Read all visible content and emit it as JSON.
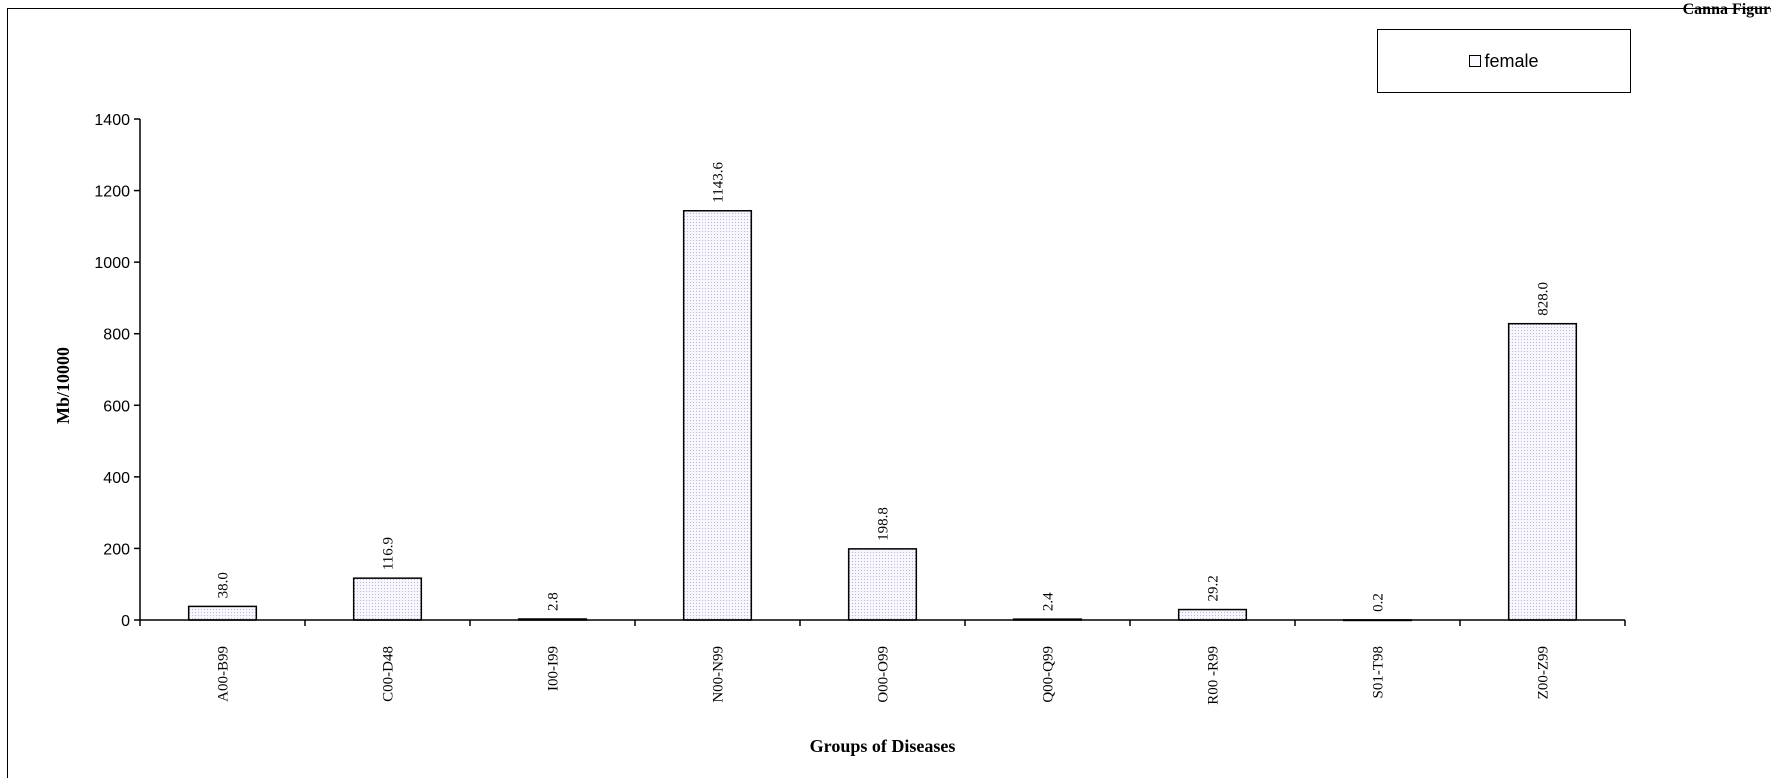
{
  "corner_label": "Сanna Figure",
  "chart_data": {
    "type": "bar",
    "categories": [
      "A00-B99",
      "C00-D48",
      "I00-I99",
      "N00-N99",
      "O00-O99",
      "Q00-Q99",
      "R00 -R99",
      "S01-T98",
      "Z00-Z99"
    ],
    "series": [
      {
        "name": "female",
        "values": [
          38.0,
          116.9,
          2.8,
          1143.6,
          198.8,
          2.4,
          29.2,
          0.2,
          828.0
        ]
      }
    ],
    "data_labels": [
      "38.0",
      "116.9",
      "2.8",
      "1143.6",
      "198.8",
      "2.4",
      "29.2",
      "0.2",
      "828.0"
    ],
    "yticks": [
      "0",
      "200",
      "400",
      "600",
      "800",
      "1000",
      "1200",
      "1400"
    ],
    "ylim": [
      0,
      1400
    ],
    "xlabel": "Groups of Diseases",
    "ylabel": "Mb/10000",
    "legend_position": "top-right",
    "grid": false,
    "colors": {
      "bar_fill": "#f0f0f8",
      "bar_stroke": "#000000",
      "axis": "#000000"
    }
  }
}
